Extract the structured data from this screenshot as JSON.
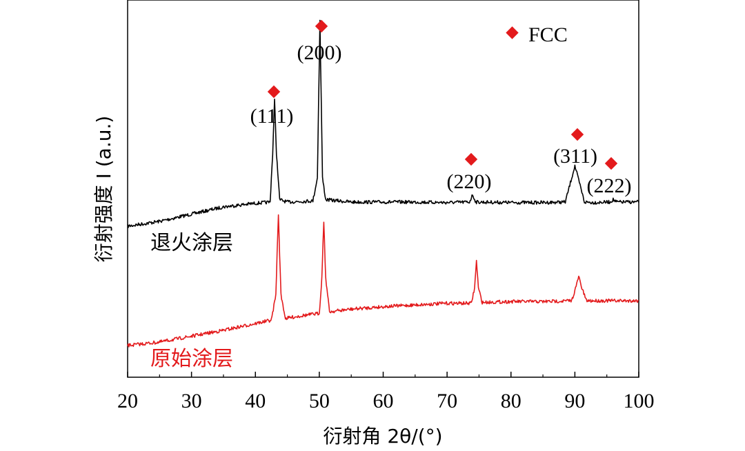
{
  "chart_data": {
    "type": "line",
    "xlabel": "衍射角 2θ/(°)",
    "ylabel": "衍射强度 I (a.u.)",
    "xlim": [
      20,
      100
    ],
    "x_ticks": [
      "20",
      "30",
      "40",
      "50",
      "60",
      "70",
      "80",
      "90",
      "100"
    ],
    "y_ticks": [],
    "grid": false,
    "legend": {
      "position": "top-right",
      "entries": [
        {
          "label": "FCC",
          "marker": "red-diamond"
        }
      ]
    },
    "series": [
      {
        "name": "退火涂层",
        "color": "#000000",
        "points": [
          [
            20,
            0.0
          ],
          [
            25,
            0.02
          ],
          [
            30,
            0.05
          ],
          [
            35,
            0.08
          ],
          [
            40,
            0.095
          ],
          [
            42.3,
            0.1
          ],
          [
            42.7,
            0.3
          ],
          [
            43.0,
            0.52
          ],
          [
            43.3,
            0.3
          ],
          [
            43.8,
            0.11
          ],
          [
            45,
            0.1
          ],
          [
            49,
            0.105
          ],
          [
            49.7,
            0.2
          ],
          [
            50.1,
            0.85
          ],
          [
            50.5,
            0.2
          ],
          [
            51,
            0.11
          ],
          [
            55,
            0.1
          ],
          [
            60,
            0.1
          ],
          [
            65,
            0.1
          ],
          [
            70,
            0.098
          ],
          [
            73.5,
            0.1
          ],
          [
            74.0,
            0.13
          ],
          [
            74.5,
            0.1
          ],
          [
            80,
            0.098
          ],
          [
            85,
            0.098
          ],
          [
            88.5,
            0.1
          ],
          [
            89.5,
            0.2
          ],
          [
            90.0,
            0.25
          ],
          [
            90.5,
            0.2
          ],
          [
            91.5,
            0.1
          ],
          [
            93,
            0.098
          ],
          [
            95.5,
            0.1
          ],
          [
            96.0,
            0.11
          ],
          [
            96.5,
            0.1
          ],
          [
            100,
            0.1
          ]
        ]
      },
      {
        "name": "原始涂层",
        "color": "#e31a1c",
        "points": [
          [
            20,
            0.0
          ],
          [
            25,
            0.02
          ],
          [
            30,
            0.055
          ],
          [
            35,
            0.09
          ],
          [
            40,
            0.13
          ],
          [
            42.5,
            0.15
          ],
          [
            43.2,
            0.3
          ],
          [
            43.6,
            0.78
          ],
          [
            44.0,
            0.3
          ],
          [
            44.7,
            0.16
          ],
          [
            47,
            0.175
          ],
          [
            50.0,
            0.19
          ],
          [
            50.4,
            0.4
          ],
          [
            50.7,
            0.74
          ],
          [
            51.0,
            0.4
          ],
          [
            51.6,
            0.2
          ],
          [
            55,
            0.215
          ],
          [
            60,
            0.23
          ],
          [
            65,
            0.24
          ],
          [
            70,
            0.25
          ],
          [
            73.8,
            0.25
          ],
          [
            74.3,
            0.34
          ],
          [
            74.6,
            0.5
          ],
          [
            74.9,
            0.34
          ],
          [
            75.5,
            0.255
          ],
          [
            80,
            0.26
          ],
          [
            85,
            0.26
          ],
          [
            89.5,
            0.265
          ],
          [
            90.2,
            0.35
          ],
          [
            90.6,
            0.41
          ],
          [
            91.0,
            0.35
          ],
          [
            91.8,
            0.265
          ],
          [
            95,
            0.265
          ],
          [
            100,
            0.265
          ]
        ]
      }
    ],
    "annotations": [
      {
        "label": "(111)",
        "x": 43.0,
        "marker": "red-diamond"
      },
      {
        "label": "(200)",
        "x": 50.1,
        "marker": "red-diamond"
      },
      {
        "label": "(220)",
        "x": 73.7,
        "marker": "red-diamond"
      },
      {
        "label": "(311)",
        "x": 89.8,
        "marker": "red-diamond"
      },
      {
        "label": "(222)",
        "x": 95.8,
        "marker": "red-diamond"
      }
    ],
    "series_labels": [
      {
        "text": "退火涂层",
        "color": "#000000"
      },
      {
        "text": "原始涂层",
        "color": "#e31a1c"
      }
    ],
    "marker_color": "#e31a1c"
  }
}
